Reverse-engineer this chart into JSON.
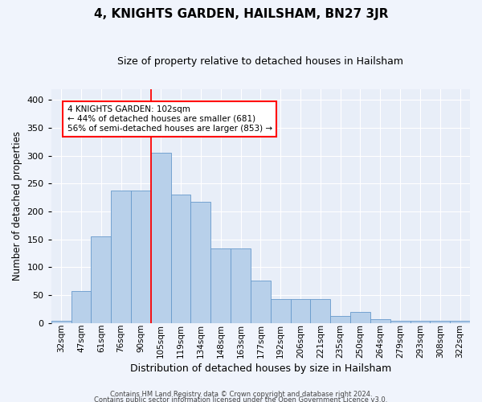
{
  "title": "4, KNIGHTS GARDEN, HAILSHAM, BN27 3JR",
  "subtitle": "Size of property relative to detached houses in Hailsham",
  "xlabel": "Distribution of detached houses by size in Hailsham",
  "ylabel": "Number of detached properties",
  "categories": [
    "32sqm",
    "47sqm",
    "61sqm",
    "76sqm",
    "90sqm",
    "105sqm",
    "119sqm",
    "134sqm",
    "148sqm",
    "163sqm",
    "177sqm",
    "192sqm",
    "206sqm",
    "221sqm",
    "235sqm",
    "250sqm",
    "264sqm",
    "279sqm",
    "293sqm",
    "308sqm",
    "322sqm"
  ],
  "values": [
    3,
    57,
    155,
    237,
    237,
    306,
    230,
    218,
    133,
    133,
    76,
    42,
    42,
    42,
    13,
    20,
    7,
    4,
    4,
    3,
    3
  ],
  "bar_color": "#b8d0ea",
  "bar_edge_color": "#6699cc",
  "bg_color": "#e8eef8",
  "grid_color": "#ffffff",
  "vline_x_index": 5,
  "vline_color": "red",
  "annotation_text": "4 KNIGHTS GARDEN: 102sqm\n← 44% of detached houses are smaller (681)\n56% of semi-detached houses are larger (853) →",
  "annotation_box_color": "white",
  "annotation_box_edge_color": "red",
  "ylim": [
    0,
    420
  ],
  "yticks": [
    0,
    50,
    100,
    150,
    200,
    250,
    300,
    350,
    400
  ],
  "footer1": "Contains HM Land Registry data © Crown copyright and database right 2024.",
  "footer2": "Contains public sector information licensed under the Open Government Licence v3.0.",
  "fig_width": 6.0,
  "fig_height": 5.0,
  "dpi": 100
}
